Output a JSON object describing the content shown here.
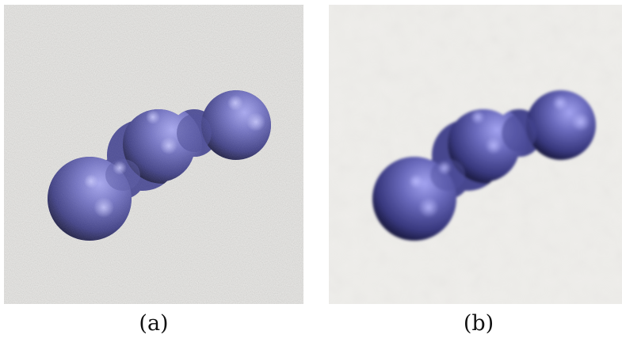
{
  "panels": [
    {
      "caption": "(a)",
      "variant": "noisy",
      "background_color": "#ecebe8",
      "object_color": "#6f6fbf"
    },
    {
      "caption": "(b)",
      "variant": "denoised",
      "background_color": "#eeedea",
      "object_color": "#6767b8"
    }
  ]
}
